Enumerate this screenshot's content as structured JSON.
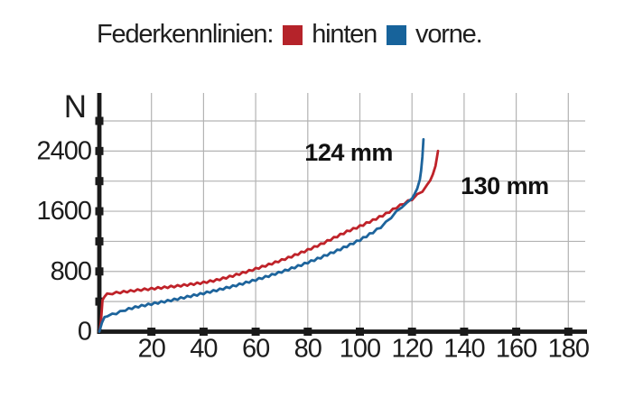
{
  "legend": {
    "title": "Federkennlinien:",
    "items": [
      {
        "label": "hinten",
        "color": "#b5232a"
      },
      {
        "label": "vorne.",
        "color": "#17639b"
      }
    ]
  },
  "axes": {
    "y_unit_label": "N",
    "y_tick_labels": [
      "0",
      "800",
      "1600",
      "2400"
    ],
    "x_tick_labels": [
      "20",
      "40",
      "60",
      "80",
      "100",
      "120",
      "140",
      "160",
      "180"
    ]
  },
  "chart_data": {
    "type": "line",
    "title": "Federkennlinien: hinten / vorne",
    "xlabel": "",
    "ylabel": "N",
    "x_unit": "mm",
    "xlim": [
      0,
      186
    ],
    "ylim": [
      0,
      3170
    ],
    "grid": true,
    "x_ticks": [
      20,
      40,
      60,
      80,
      100,
      120,
      140,
      160,
      180
    ],
    "y_ticks_labeled": [
      0,
      800,
      1600,
      2400
    ],
    "y_ticks_all": [
      400,
      800,
      1200,
      1600,
      2000,
      2400,
      2800
    ],
    "colors": {
      "grid": "#b3b3b3",
      "axis": "#1a1a1a"
    },
    "series": [
      {
        "name": "hinten",
        "color": "#bf2229",
        "max_travel_mm": 130,
        "points": [
          [
            0,
            0
          ],
          [
            0.6,
            120
          ],
          [
            1.2,
            420
          ],
          [
            2,
            465
          ],
          [
            3,
            495
          ],
          [
            5,
            510
          ],
          [
            8,
            523
          ],
          [
            12,
            540
          ],
          [
            16,
            556
          ],
          [
            20,
            570
          ],
          [
            25,
            588
          ],
          [
            30,
            607
          ],
          [
            35,
            628
          ],
          [
            40,
            652
          ],
          [
            45,
            685
          ],
          [
            50,
            730
          ],
          [
            55,
            780
          ],
          [
            60,
            835
          ],
          [
            65,
            890
          ],
          [
            70,
            950
          ],
          [
            75,
            1015
          ],
          [
            80,
            1085
          ],
          [
            85,
            1160
          ],
          [
            90,
            1245
          ],
          [
            95,
            1330
          ],
          [
            100,
            1400
          ],
          [
            105,
            1480
          ],
          [
            110,
            1565
          ],
          [
            114,
            1650
          ],
          [
            117,
            1705
          ],
          [
            120,
            1760
          ],
          [
            122,
            1815
          ],
          [
            124,
            1870
          ],
          [
            126,
            1950
          ],
          [
            127,
            2010
          ],
          [
            128,
            2090
          ],
          [
            129,
            2200
          ],
          [
            129.6,
            2320
          ],
          [
            130,
            2400
          ]
        ]
      },
      {
        "name": "vorne",
        "color": "#1d649c",
        "max_travel_mm": 124,
        "points": [
          [
            0,
            0
          ],
          [
            1,
            120
          ],
          [
            2,
            195
          ],
          [
            3,
            215
          ],
          [
            5,
            228
          ],
          [
            8,
            262
          ],
          [
            10,
            290
          ],
          [
            15,
            335
          ],
          [
            20,
            368
          ],
          [
            25,
            400
          ],
          [
            30,
            435
          ],
          [
            35,
            472
          ],
          [
            40,
            510
          ],
          [
            45,
            550
          ],
          [
            50,
            592
          ],
          [
            55,
            638
          ],
          [
            60,
            688
          ],
          [
            65,
            740
          ],
          [
            70,
            796
          ],
          [
            75,
            855
          ],
          [
            80,
            918
          ],
          [
            85,
            985
          ],
          [
            90,
            1058
          ],
          [
            95,
            1135
          ],
          [
            100,
            1218
          ],
          [
            105,
            1320
          ],
          [
            108,
            1390
          ],
          [
            110,
            1450
          ],
          [
            112,
            1520
          ],
          [
            114,
            1590
          ],
          [
            116,
            1660
          ],
          [
            118,
            1700
          ],
          [
            120,
            1780
          ],
          [
            121,
            1830
          ],
          [
            122,
            1900
          ],
          [
            123,
            2020
          ],
          [
            123.5,
            2140
          ],
          [
            124,
            2320
          ],
          [
            124.4,
            2555
          ]
        ]
      }
    ],
    "annotations": [
      {
        "text": "124 mm",
        "x": 95.7,
        "y": 2380
      },
      {
        "text": "130 mm",
        "x": 155.6,
        "y": 1935
      }
    ]
  }
}
